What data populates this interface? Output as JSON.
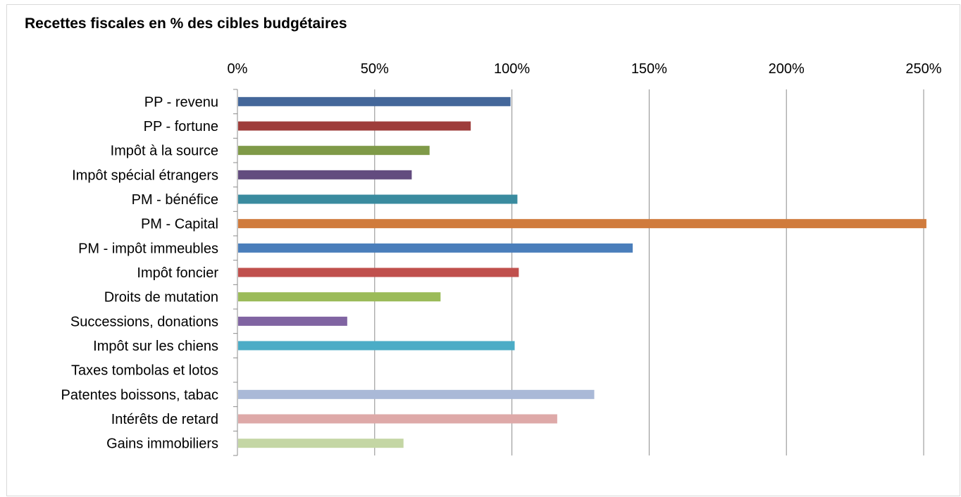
{
  "chart_data": {
    "type": "bar",
    "orientation": "horizontal",
    "title": "Recettes fiscales en % des cibles budgétaires",
    "xlabel": "",
    "ylabel": "",
    "xlim": [
      0,
      250
    ],
    "x_ticks": [
      "0%",
      "50%",
      "100%",
      "150%",
      "200%",
      "250%"
    ],
    "x_axis_position": "top",
    "grid": true,
    "categories": [
      "PP - revenu",
      "PP - fortune",
      "Impôt à la source",
      "Impôt spécial étrangers",
      "PM - bénéfice",
      "PM - Capital",
      "PM - impôt immeubles",
      "Impôt foncier",
      "Droits de mutation",
      "Successions, donations",
      "Impôt sur les chiens",
      "Taxes tombolas et lotos",
      "Patentes boissons, tabac",
      "Intérêts de retard",
      "Gains immobiliers"
    ],
    "values": [
      99.5,
      85,
      70,
      63.5,
      102,
      251,
      144,
      102.5,
      74,
      40,
      101,
      0,
      130,
      116.5,
      60.5
    ],
    "colors": [
      "#44679a",
      "#9e3d3b",
      "#7f9a48",
      "#634c7f",
      "#3a8b9f",
      "#d07b3c",
      "#4a7ebb",
      "#c0504d",
      "#9bbb59",
      "#8064a2",
      "#4bacc6",
      "#f79646",
      "#aab9d7",
      "#dea9a8",
      "#c4d6a4"
    ]
  }
}
